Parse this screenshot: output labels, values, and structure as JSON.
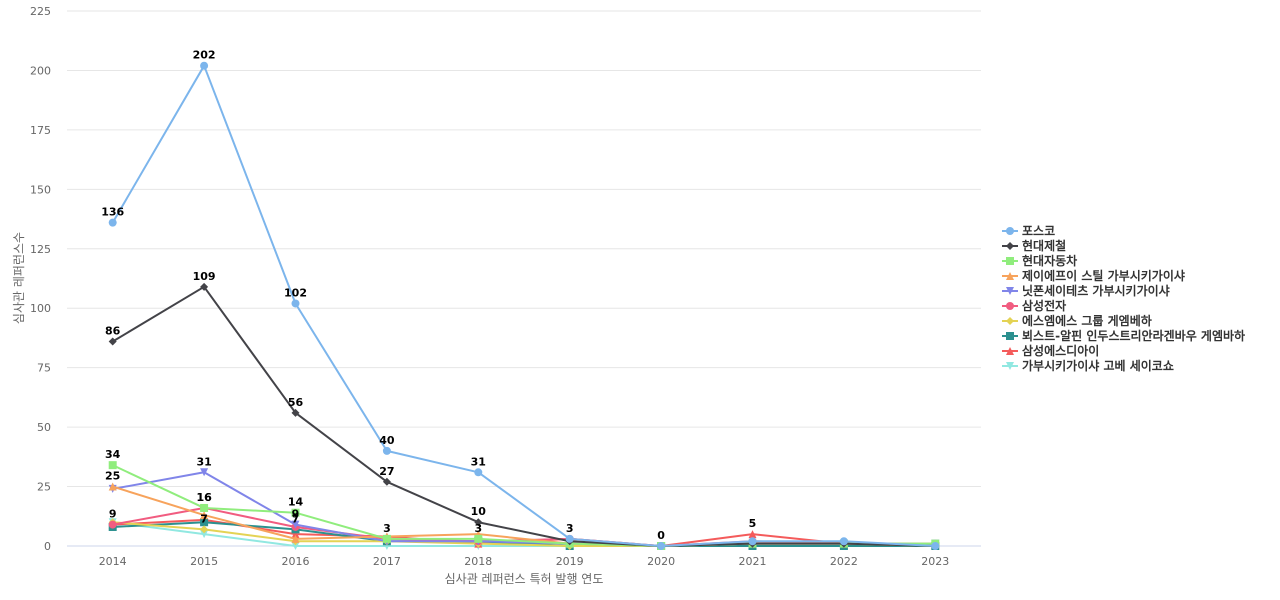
{
  "chart_data": {
    "type": "line",
    "xlabel": "심사관 레퍼런스 특허 발행 연도",
    "ylabel": "심사관 레퍼런스수",
    "ylim": [
      0,
      225
    ],
    "yticks": [
      0,
      25,
      50,
      75,
      100,
      125,
      150,
      175,
      200,
      225
    ],
    "grid": true,
    "legend_position": "right",
    "categories": [
      "2014",
      "2015",
      "2016",
      "2017",
      "2018",
      "2019",
      "2020",
      "2021",
      "2022",
      "2023"
    ],
    "series": [
      {
        "name": "포스코",
        "color": "#7cb5ec",
        "marker": "circle",
        "values": [
          136,
          202,
          102,
          40,
          31,
          3,
          0,
          2,
          2,
          0
        ],
        "labels": [
          true,
          true,
          true,
          true,
          true,
          true,
          true,
          false,
          false,
          false
        ]
      },
      {
        "name": "현대제철",
        "color": "#434348",
        "marker": "diamond",
        "values": [
          86,
          109,
          56,
          27,
          10,
          2,
          0,
          1,
          1,
          0
        ],
        "labels": [
          true,
          true,
          true,
          true,
          true,
          false,
          false,
          false,
          false,
          false
        ]
      },
      {
        "name": "현대자동차",
        "color": "#90ed7d",
        "marker": "square",
        "values": [
          34,
          16,
          14,
          3,
          3,
          1,
          0,
          1,
          1,
          1
        ],
        "labels": [
          true,
          true,
          true,
          true,
          true,
          false,
          false,
          false,
          false,
          false
        ]
      },
      {
        "name": "제이에프이 스틸 가부시키가이샤",
        "color": "#f7a35c",
        "marker": "triangle",
        "values": [
          25,
          13,
          3,
          4,
          5,
          1,
          0,
          1,
          1,
          1
        ],
        "labels": [
          true,
          false,
          false,
          false,
          false,
          false,
          false,
          false,
          false,
          false
        ]
      },
      {
        "name": "닛폰세이테츠 가부시키가이샤",
        "color": "#8085e9",
        "marker": "triangle-down",
        "values": [
          24,
          31,
          9,
          2,
          2,
          1,
          0,
          1,
          1,
          1
        ],
        "labels": [
          false,
          true,
          true,
          false,
          false,
          false,
          false,
          false,
          false,
          false
        ]
      },
      {
        "name": "삼성전자",
        "color": "#f15c80",
        "marker": "circle",
        "values": [
          9,
          16,
          8,
          3,
          2,
          3,
          0,
          2,
          1,
          1
        ],
        "labels": [
          true,
          true,
          false,
          false,
          false,
          false,
          false,
          false,
          false,
          false
        ]
      },
      {
        "name": "에스엠에스 그룹 게엠베하",
        "color": "#e4d354",
        "marker": "diamond",
        "values": [
          10,
          7,
          2,
          2,
          1,
          0,
          0,
          1,
          1,
          0
        ],
        "labels": [
          false,
          true,
          false,
          false,
          false,
          false,
          false,
          false,
          false,
          false
        ]
      },
      {
        "name": "뵈스트-알핀 인두스트리안라겐바우 게엠바하",
        "color": "#2b908f",
        "marker": "square",
        "values": [
          8,
          10,
          7,
          2,
          2,
          0,
          0,
          0,
          0,
          0
        ],
        "labels": [
          false,
          false,
          true,
          false,
          false,
          false,
          false,
          false,
          false,
          false
        ]
      },
      {
        "name": "삼성에스디아이",
        "color": "#f45b5b",
        "marker": "triangle",
        "values": [
          9,
          11,
          5,
          4,
          1,
          3,
          0,
          5,
          1,
          1
        ],
        "labels": [
          false,
          false,
          false,
          false,
          false,
          false,
          false,
          true,
          false,
          false
        ]
      },
      {
        "name": "가부시키가이샤 고베 세이코쇼",
        "color": "#91e8e1",
        "marker": "triangle-down",
        "values": [
          10,
          5,
          0,
          0,
          0,
          0,
          0,
          1,
          1,
          0
        ],
        "labels": [
          false,
          false,
          false,
          false,
          false,
          false,
          false,
          false,
          false,
          false
        ]
      }
    ]
  }
}
